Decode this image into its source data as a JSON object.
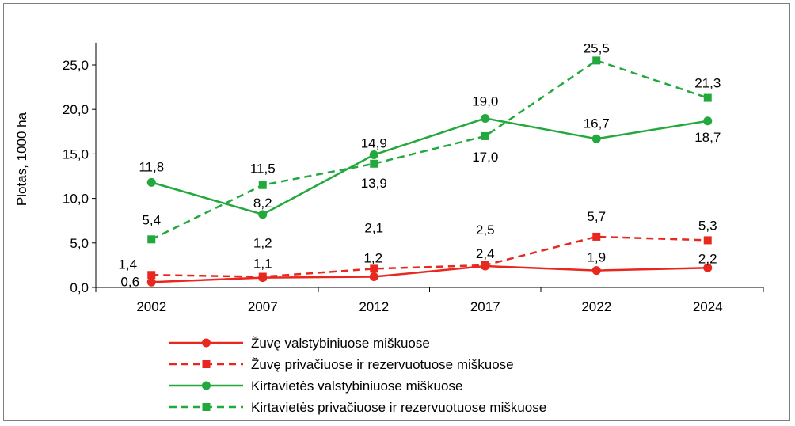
{
  "chart_data": {
    "type": "line",
    "title": "",
    "xlabel": "",
    "ylabel": "Plotas, 1000 ha",
    "ylim": [
      0,
      27.5
    ],
    "yticks": [
      "0,0",
      "5,0",
      "10,0",
      "15,0",
      "20,0",
      "25,0"
    ],
    "categories": [
      "2002",
      "2007",
      "2012",
      "2017",
      "2022",
      "2024"
    ],
    "grid": false,
    "legend_position": "bottom",
    "series": [
      {
        "name": "Žuvę valstybiniuose miškuose",
        "color": "#e8281e",
        "dash": false,
        "marker": "circle",
        "values": [
          0.6,
          1.1,
          1.2,
          2.4,
          1.9,
          2.2
        ],
        "labels": [
          "0,6",
          "1,1",
          "1,2",
          "2,4",
          "1,9",
          "2,2"
        ]
      },
      {
        "name": "Žuvę privačiuose ir rezervuotuose miškuose",
        "color": "#e8281e",
        "dash": true,
        "marker": "square",
        "values": [
          1.4,
          1.2,
          2.1,
          2.5,
          5.7,
          5.3
        ],
        "labels": [
          "1,4",
          "1,2",
          "2,1",
          "2,5",
          "5,7",
          "5,3"
        ]
      },
      {
        "name": "Kirtavietės valstybiniuose miškuose",
        "color": "#22a83c",
        "dash": false,
        "marker": "circle",
        "values": [
          11.8,
          8.2,
          14.9,
          19.0,
          16.7,
          18.7
        ],
        "labels": [
          "11,8",
          "8,2",
          "14,9",
          "19,0",
          "16,7",
          "18,7"
        ]
      },
      {
        "name": "Kirtavietės privačiuose ir rezervuotuose miškuose",
        "color": "#22a83c",
        "dash": true,
        "marker": "square",
        "values": [
          5.4,
          11.5,
          13.9,
          17.0,
          25.5,
          21.3
        ],
        "labels": [
          "5,4",
          "11,5",
          "13,9",
          "17,0",
          "25,5",
          "21,3"
        ]
      }
    ]
  }
}
